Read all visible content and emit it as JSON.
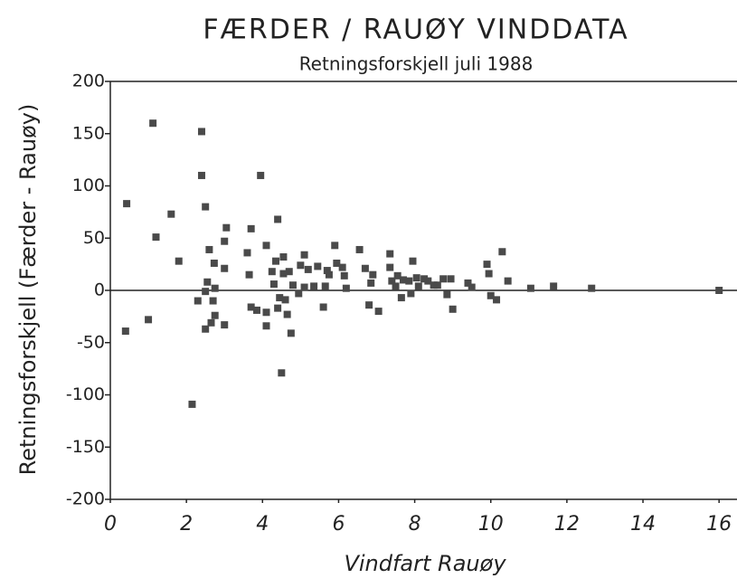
{
  "chart_data": {
    "type": "scatter",
    "title": "FÆRDER / RAUØY  VINDDATA",
    "subtitle": "Retningsforskjell juli 1988",
    "x_label": "Vindfart Rauøy",
    "y_label": "Retningsforskjell (Færder - Rauøy)",
    "color": "#4a4a4a",
    "xlim": [
      0,
      16.4
    ],
    "xticks": [
      0,
      2,
      4,
      6,
      8,
      10,
      12,
      14,
      16
    ],
    "ylim": [
      -200,
      200
    ],
    "yticks": [
      -200,
      -150,
      -100,
      -50,
      0,
      50,
      100,
      150,
      200
    ],
    "x": [
      0.43,
      0.4,
      1.0,
      1.12,
      1.2,
      1.6,
      1.8,
      2.15,
      2.3,
      2.4,
      2.4,
      2.5,
      2.5,
      2.5,
      2.55,
      2.6,
      2.65,
      2.7,
      2.73,
      2.75,
      2.75,
      3.0,
      3.05,
      3.0,
      3.0,
      3.6,
      3.65,
      3.7,
      3.7,
      3.85,
      3.95,
      4.1,
      4.1,
      4.1,
      4.25,
      4.3,
      4.35,
      4.4,
      4.4,
      4.45,
      4.5,
      4.55,
      4.55,
      4.6,
      4.65,
      4.7,
      4.75,
      4.8,
      4.95,
      5.0,
      5.1,
      5.1,
      5.2,
      5.35,
      5.45,
      5.6,
      5.65,
      5.7,
      5.75,
      5.9,
      5.95,
      6.1,
      6.15,
      6.2,
      6.55,
      6.7,
      6.8,
      6.85,
      6.9,
      7.05,
      7.35,
      7.35,
      7.4,
      7.5,
      7.55,
      7.65,
      7.7,
      7.85,
      7.9,
      7.95,
      8.05,
      8.1,
      8.25,
      8.35,
      8.5,
      8.6,
      8.75,
      8.85,
      8.95,
      9.0,
      9.4,
      9.5,
      9.9,
      9.95,
      10.0,
      10.15,
      10.3,
      10.45,
      11.05,
      11.65,
      12.65,
      16.0
    ],
    "values": [
      83,
      -39,
      -28,
      160,
      51,
      73,
      28,
      -109,
      -10,
      152,
      110,
      80,
      -37,
      -1,
      8,
      39,
      -31,
      -10,
      26,
      2,
      -24,
      21,
      60,
      -33,
      47,
      36,
      15,
      -16,
      59,
      -19,
      110,
      -21,
      43,
      -34,
      18,
      6,
      28,
      68,
      -17,
      -7,
      -79,
      32,
      16,
      -9,
      -23,
      18,
      -41,
      5,
      -3,
      24,
      34,
      3,
      20,
      4,
      23,
      -16,
      4,
      19,
      15,
      43,
      26,
      22,
      14,
      2,
      39,
      21,
      -14,
      7,
      15,
      -20,
      35,
      22,
      9,
      4,
      14,
      -7,
      10,
      9,
      -3,
      28,
      12,
      4,
      11,
      9,
      5,
      5,
      11,
      -4,
      11,
      -18,
      7,
      3,
      25,
      16,
      -5,
      -9,
      37,
      9,
      2,
      4,
      2,
      0
    ]
  }
}
